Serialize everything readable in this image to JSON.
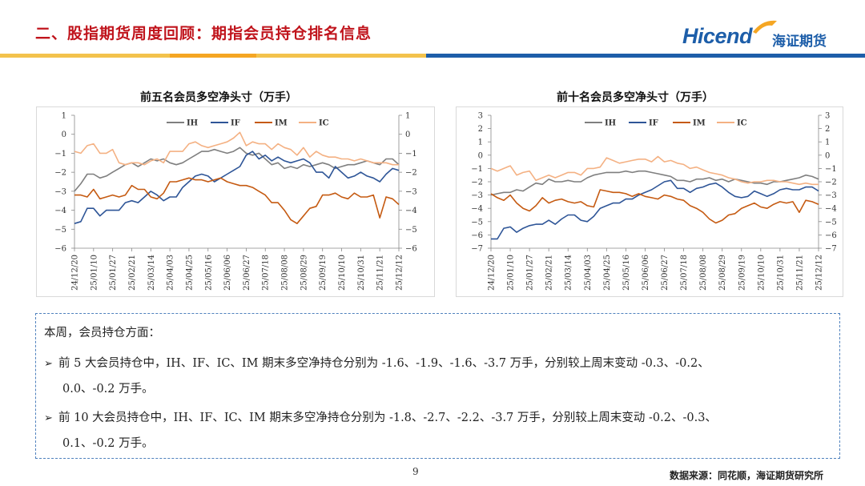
{
  "page": {
    "title": "二、股指期货周度回顾：期指会员持仓排名信息",
    "logo_text": "Hicend",
    "logo_cn": "海证期货",
    "page_number": "9",
    "source": "数据来源：同花顺，海证期货研究所"
  },
  "colors": {
    "IH": "#7f7f7f",
    "IF": "#2e5597",
    "IM": "#c55a11",
    "IC": "#f4b183",
    "title": "#c0141c"
  },
  "summary": {
    "heading": "本周，会员持仓方面：",
    "bullet1_a": "前 5 大会员持仓中，IH、IF、IC、IM 期末多空净持仓分别为 -1.6、-1.9、-1.6、-3.7 万手，分别较上周末变动 -0.3、-0.2、",
    "bullet1_b": "0.0、-0.2 万手。",
    "bullet2_a": "前 10 大会员持仓中，IH、IF、IC、IM 期末多空净持仓分别为 -1.8、-2.7、-2.2、-3.7 万手，分别较上周末变动 -0.2、-0.3、",
    "bullet2_b": "0.1、-0.2 万手。"
  },
  "chart_data": [
    {
      "type": "line",
      "title": "前五名会员多空净头寸（万手）",
      "legend_position": "top",
      "x_ticks": [
        "24/12/20",
        "25/01/10",
        "25/01/27",
        "25/02/21",
        "25/03/14",
        "25/04/03",
        "25/04/25",
        "25/05/16",
        "25/06/06",
        "25/06/27",
        "25/07/18",
        "25/08/08",
        "25/08/29",
        "25/09/19",
        "25/10/10",
        "25/10/31",
        "25/11/21",
        "25/12/12"
      ],
      "y_ticks_left": [
        1,
        0,
        -1,
        -2,
        -3,
        -4,
        -5,
        -6
      ],
      "y_ticks_right": [
        1,
        0,
        -1,
        -2,
        -3,
        -4,
        -5,
        -6
      ],
      "ylim": [
        -6,
        1
      ],
      "series": [
        {
          "name": "IH",
          "values": [
            -3.0,
            -2.6,
            -2.1,
            -2.1,
            -2.3,
            -2.2,
            -2.0,
            -1.8,
            -1.6,
            -1.5,
            -1.7,
            -1.5,
            -1.3,
            -1.4,
            -1.3,
            -1.5,
            -1.6,
            -1.5,
            -1.3,
            -1.1,
            -0.9,
            -0.9,
            -0.8,
            -0.9,
            -1.0,
            -0.9,
            -0.7,
            -1.0,
            -1.1,
            -1.0,
            -1.3,
            -1.6,
            -1.5,
            -1.8,
            -1.7,
            -1.8,
            -1.6,
            -1.7,
            -1.6,
            -1.5,
            -1.6,
            -1.8,
            -1.7,
            -1.6,
            -1.6,
            -1.5,
            -1.4,
            -1.5,
            -1.6,
            -1.3,
            -1.3,
            -1.6
          ]
        },
        {
          "name": "IF",
          "values": [
            -4.7,
            -4.6,
            -3.9,
            -3.9,
            -4.3,
            -4.0,
            -4.0,
            -4.0,
            -3.6,
            -3.5,
            -3.6,
            -3.3,
            -3.0,
            -3.2,
            -3.5,
            -3.3,
            -3.3,
            -2.8,
            -2.5,
            -2.2,
            -2.1,
            -2.2,
            -2.5,
            -2.3,
            -2.1,
            -1.9,
            -1.7,
            -1.1,
            -0.9,
            -1.3,
            -1.1,
            -1.4,
            -1.2,
            -1.4,
            -1.5,
            -1.4,
            -1.3,
            -1.5,
            -2.0,
            -2.0,
            -2.3,
            -1.7,
            -2.0,
            -2.3,
            -2.2,
            -2.0,
            -2.2,
            -2.3,
            -2.5,
            -2.1,
            -1.8,
            -1.9
          ]
        },
        {
          "name": "IM",
          "values": [
            -3.2,
            -3.2,
            -3.3,
            -2.9,
            -3.4,
            -3.3,
            -3.2,
            -3.3,
            -3.2,
            -2.7,
            -2.9,
            -2.9,
            -3.3,
            -3.4,
            -3.1,
            -2.5,
            -2.5,
            -2.4,
            -2.3,
            -2.4,
            -2.4,
            -2.5,
            -2.4,
            -2.3,
            -2.5,
            -2.6,
            -2.7,
            -2.7,
            -2.8,
            -3.0,
            -3.2,
            -3.6,
            -3.6,
            -4.0,
            -4.5,
            -4.7,
            -4.3,
            -3.9,
            -3.8,
            -3.2,
            -3.2,
            -3.1,
            -3.3,
            -3.4,
            -3.1,
            -3.3,
            -3.3,
            -3.2,
            -4.4,
            -3.3,
            -3.4,
            -3.7
          ]
        },
        {
          "name": "IC",
          "values": [
            -0.9,
            -1.0,
            -0.6,
            -0.5,
            -1.0,
            -1.0,
            -0.8,
            -1.5,
            -1.6,
            -1.5,
            -1.5,
            -1.6,
            -1.4,
            -1.3,
            -1.5,
            -0.9,
            -0.9,
            -0.9,
            -0.5,
            -0.4,
            -0.6,
            -0.7,
            -0.6,
            -0.5,
            -0.4,
            -0.2,
            0.1,
            -0.6,
            -0.4,
            -0.5,
            -0.5,
            -0.8,
            -0.5,
            -0.7,
            -0.8,
            -1.1,
            -0.7,
            -1.2,
            -0.9,
            -1.1,
            -1.2,
            -1.2,
            -1.3,
            -1.3,
            -1.4,
            -1.3,
            -1.4,
            -1.5,
            -1.5,
            -1.5,
            -1.6,
            -1.6
          ]
        }
      ]
    },
    {
      "type": "line",
      "title": "前十名会员多空净头寸（万手）",
      "legend_position": "top",
      "x_ticks": [
        "24/12/20",
        "25/01/10",
        "25/01/27",
        "25/02/21",
        "25/03/14",
        "25/04/03",
        "25/04/25",
        "25/05/16",
        "25/06/06",
        "25/06/27",
        "25/07/18",
        "25/08/08",
        "25/08/29",
        "25/09/19",
        "25/10/10",
        "25/10/31",
        "25/11/21",
        "25/12/12"
      ],
      "y_ticks_left": [
        3,
        2,
        1,
        0,
        -1,
        -2,
        -3,
        -4,
        -5,
        -6,
        -7
      ],
      "y_ticks_right": [
        3,
        2,
        1,
        0,
        -1,
        -2,
        -3,
        -4,
        -5,
        -6,
        -7
      ],
      "ylim": [
        -7,
        3
      ],
      "series": [
        {
          "name": "IH",
          "values": [
            -3.0,
            -2.9,
            -2.8,
            -2.8,
            -2.6,
            -2.7,
            -2.4,
            -2.1,
            -2.2,
            -1.8,
            -2.0,
            -2.0,
            -1.9,
            -2.0,
            -2.0,
            -1.7,
            -1.5,
            -1.4,
            -1.3,
            -1.3,
            -1.3,
            -1.2,
            -1.3,
            -1.2,
            -1.2,
            -1.3,
            -1.4,
            -1.5,
            -1.6,
            -1.9,
            -1.9,
            -2.0,
            -1.8,
            -1.8,
            -1.7,
            -1.9,
            -1.8,
            -2.0,
            -1.8,
            -1.9,
            -2.0,
            -2.1,
            -2.1,
            -2.2,
            -2.0,
            -2.0,
            -1.9,
            -1.8,
            -1.7,
            -1.5,
            -1.6,
            -1.8
          ]
        },
        {
          "name": "IF",
          "values": [
            -6.3,
            -6.3,
            -5.5,
            -5.4,
            -5.8,
            -5.5,
            -5.3,
            -5.2,
            -5.2,
            -4.9,
            -5.2,
            -4.8,
            -4.5,
            -4.5,
            -4.9,
            -5.0,
            -4.6,
            -4.0,
            -3.8,
            -3.6,
            -3.6,
            -3.3,
            -3.3,
            -3.0,
            -2.8,
            -2.6,
            -2.3,
            -2.0,
            -1.9,
            -2.5,
            -2.5,
            -2.8,
            -2.5,
            -2.4,
            -2.2,
            -2.1,
            -2.4,
            -2.8,
            -3.1,
            -3.2,
            -3.1,
            -2.7,
            -2.9,
            -3.1,
            -2.9,
            -2.6,
            -2.5,
            -2.6,
            -2.6,
            -2.4,
            -2.4,
            -2.7
          ]
        },
        {
          "name": "IM",
          "values": [
            -2.9,
            -3.2,
            -3.4,
            -3.0,
            -3.6,
            -4.0,
            -4.2,
            -3.8,
            -3.2,
            -3.6,
            -3.4,
            -3.3,
            -3.5,
            -3.6,
            -3.5,
            -3.8,
            -3.9,
            -2.6,
            -2.7,
            -2.8,
            -2.8,
            -2.9,
            -3.1,
            -2.9,
            -3.1,
            -3.2,
            -3.3,
            -3.0,
            -3.1,
            -3.3,
            -3.4,
            -3.8,
            -4.0,
            -4.3,
            -4.8,
            -5.1,
            -4.9,
            -4.5,
            -4.4,
            -4.0,
            -3.8,
            -3.6,
            -3.9,
            -4.0,
            -3.7,
            -3.5,
            -3.6,
            -3.5,
            -4.3,
            -3.4,
            -3.5,
            -3.7
          ]
        },
        {
          "name": "IC",
          "values": [
            -1.0,
            -1.2,
            -1.0,
            -0.8,
            -1.5,
            -1.3,
            -1.2,
            -1.9,
            -1.7,
            -1.5,
            -1.7,
            -1.5,
            -1.3,
            -1.3,
            -1.5,
            -1.0,
            -1.0,
            -0.9,
            -0.2,
            -0.4,
            -0.6,
            -0.5,
            -0.4,
            -0.3,
            -0.3,
            -0.5,
            -0.1,
            -0.5,
            -0.4,
            -0.6,
            -0.7,
            -1.0,
            -0.9,
            -1.1,
            -1.3,
            -1.4,
            -1.5,
            -1.7,
            -1.8,
            -2.0,
            -2.1,
            -2.0,
            -2.0,
            -1.9,
            -1.9,
            -2.0,
            -2.0,
            -2.1,
            -2.2,
            -2.1,
            -2.2,
            -2.2
          ]
        }
      ]
    }
  ]
}
